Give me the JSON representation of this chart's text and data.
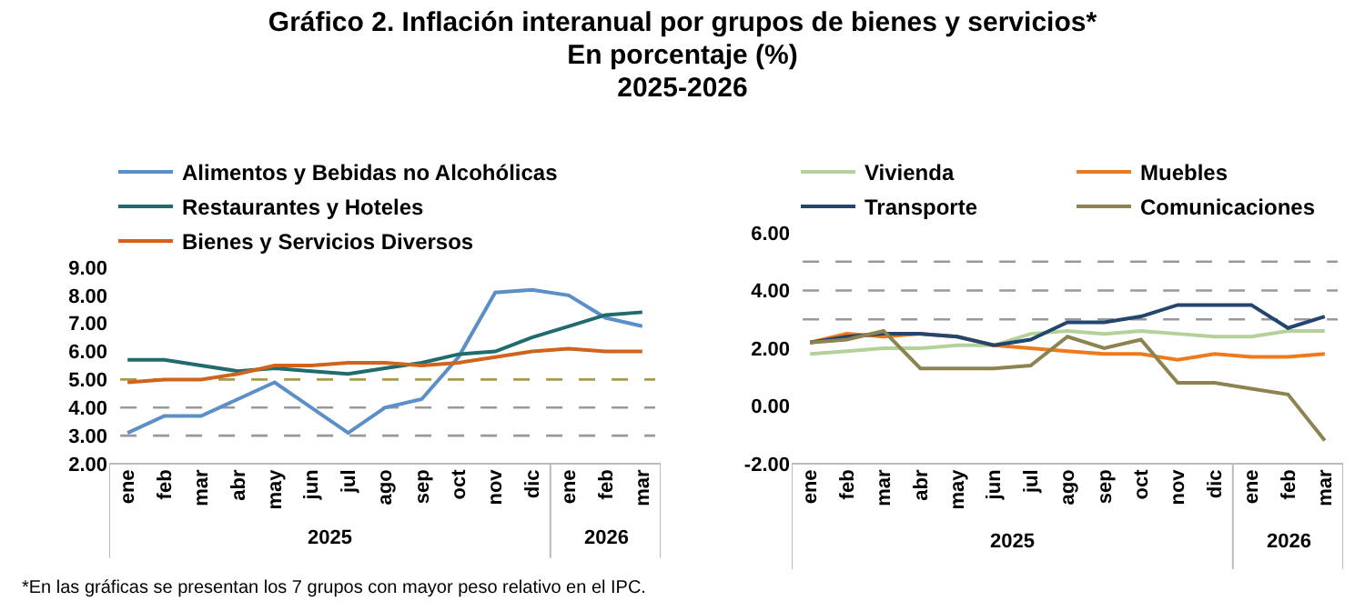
{
  "chart_data": [
    {
      "type": "line",
      "title": "Gráfico 2. Inflación interanual por grupos de bienes y servicios*\nEn porcentaje (%)\n2025-2026",
      "categories": [
        "ene",
        "feb",
        "mar",
        "abr",
        "may",
        "jun",
        "jul",
        "ago",
        "sep",
        "oct",
        "nov",
        "dic",
        "ene",
        "feb",
        "mar"
      ],
      "series": [
        {
          "name": "Alimentos y Bebidas no Alcohólicas",
          "color": "#5b8fc7",
          "values": [
            3.1,
            3.7,
            3.7,
            4.3,
            4.9,
            4.0,
            3.1,
            4.0,
            4.3,
            5.8,
            8.1,
            8.2,
            8.0,
            7.2,
            6.9
          ]
        },
        {
          "name": "Restaurantes y Hoteles",
          "color": "#1f6b6e",
          "values": [
            5.7,
            5.7,
            5.5,
            5.3,
            5.4,
            5.3,
            5.2,
            5.4,
            5.6,
            5.9,
            6.0,
            6.5,
            6.9,
            7.3,
            7.4
          ]
        },
        {
          "name": "Bienes y Servicios Diversos",
          "color": "#d1641c",
          "values": [
            4.9,
            5.0,
            5.0,
            5.2,
            5.5,
            5.5,
            5.6,
            5.6,
            5.5,
            5.6,
            5.8,
            6.0,
            6.1,
            6.0,
            6.0
          ]
        }
      ],
      "ylim": [
        2,
        9
      ],
      "yticks": [
        {
          "value": 2,
          "label": "2.00"
        },
        {
          "value": 3,
          "label": "3.00"
        },
        {
          "value": 4,
          "label": "4.00"
        },
        {
          "value": 5,
          "label": "5.00"
        },
        {
          "value": 6,
          "label": "6.00"
        },
        {
          "value": 7,
          "label": "7.00"
        },
        {
          "value": 8,
          "label": "8.00"
        },
        {
          "value": 9,
          "label": "9.00"
        }
      ],
      "ref_lines": [
        {
          "axis": "y",
          "value": 3,
          "color": "#999999",
          "line_style": "dashed"
        },
        {
          "axis": "y",
          "value": 4,
          "color": "#999999",
          "line_style": "dashed"
        },
        {
          "axis": "y",
          "value": 5,
          "color": "#a69a4a",
          "line_style": "dashed"
        }
      ],
      "annotations": [
        "2025",
        "2026",
        "*En las gráficas se presentan los 7 grupos con mayor peso relativo en el IPC."
      ],
      "grid": false,
      "legend": "top",
      "marker": "none",
      "line_style": "solid"
    },
    {
      "type": "line",
      "categories": [
        "ene",
        "feb",
        "mar",
        "abr",
        "may",
        "jun",
        "jul",
        "ago",
        "sep",
        "oct",
        "nov",
        "dic",
        "ene",
        "feb",
        "mar"
      ],
      "series": [
        {
          "name": "Vivienda",
          "color": "#b5d19a",
          "values": [
            1.8,
            1.9,
            2.0,
            2.0,
            2.1,
            2.1,
            2.5,
            2.6,
            2.5,
            2.6,
            2.5,
            2.4,
            2.4,
            2.6,
            2.6
          ]
        },
        {
          "name": "Muebles",
          "color": "#ee7a1c",
          "values": [
            2.2,
            2.5,
            2.4,
            2.5,
            2.4,
            2.1,
            2.0,
            1.9,
            1.8,
            1.8,
            1.6,
            1.8,
            1.7,
            1.7,
            1.8
          ]
        },
        {
          "name": "Transporte",
          "color": "#23456e",
          "values": [
            2.2,
            2.4,
            2.5,
            2.5,
            2.4,
            2.1,
            2.3,
            2.9,
            2.9,
            3.1,
            3.5,
            3.5,
            3.5,
            2.7,
            3.1
          ]
        },
        {
          "name": "Comunicaciones",
          "color": "#8c8350",
          "values": [
            2.2,
            2.3,
            2.6,
            1.3,
            1.3,
            1.3,
            1.4,
            2.4,
            2.0,
            2.3,
            0.8,
            0.8,
            0.6,
            0.4,
            -1.2
          ]
        }
      ],
      "ylim": [
        -2,
        6
      ],
      "yticks": [
        {
          "value": -2,
          "label": "-2.00"
        },
        {
          "value": 0,
          "label": "0.00"
        },
        {
          "value": 2,
          "label": "2.00"
        },
        {
          "value": 4,
          "label": "4.00"
        },
        {
          "value": 6,
          "label": "6.00"
        }
      ],
      "ref_lines": [
        {
          "axis": "y",
          "value": 3,
          "color": "#999999",
          "line_style": "dashed"
        },
        {
          "axis": "y",
          "value": 4,
          "color": "#999999",
          "line_style": "dashed"
        },
        {
          "axis": "y",
          "value": 5,
          "color": "#999999",
          "line_style": "dashed"
        }
      ],
      "annotations": [
        "2025",
        "2026"
      ],
      "grid": false,
      "legend": "top",
      "marker": "none",
      "line_style": "solid"
    }
  ]
}
